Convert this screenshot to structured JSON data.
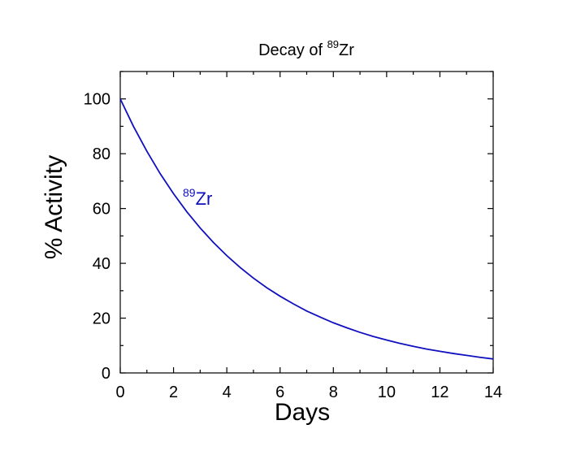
{
  "chart_data": {
    "type": "line",
    "title_main": "Decay of ",
    "title_sup": "89",
    "title_element": "Zr",
    "xlabel": "Days",
    "ylabel": "% Activity",
    "xlim": [
      0,
      14
    ],
    "ylim": [
      0,
      110
    ],
    "xticks": [
      0,
      2,
      4,
      6,
      8,
      10,
      12,
      14
    ],
    "yticks": [
      0,
      20,
      40,
      60,
      80,
      100
    ],
    "grid": false,
    "series": [
      {
        "label_sup": "89",
        "label_element": "Zr",
        "color": "#1010c0",
        "half_life_days": 3.27,
        "x": [
          0,
          0.5,
          1,
          1.5,
          2,
          2.5,
          3,
          3.5,
          4,
          4.5,
          5,
          5.5,
          6,
          6.5,
          7,
          7.5,
          8,
          8.5,
          9,
          9.5,
          10,
          10.5,
          11,
          11.5,
          12,
          12.5,
          13,
          13.5,
          14
        ],
        "y": [
          100,
          89.9,
          80.9,
          72.7,
          65.4,
          58.8,
          52.9,
          47.6,
          42.8,
          38.5,
          34.6,
          31.1,
          28.0,
          25.2,
          22.6,
          20.4,
          18.3,
          16.5,
          14.8,
          13.3,
          12.0,
          10.8,
          9.7,
          8.7,
          7.9,
          7.1,
          6.4,
          5.7,
          5.1
        ]
      }
    ]
  }
}
